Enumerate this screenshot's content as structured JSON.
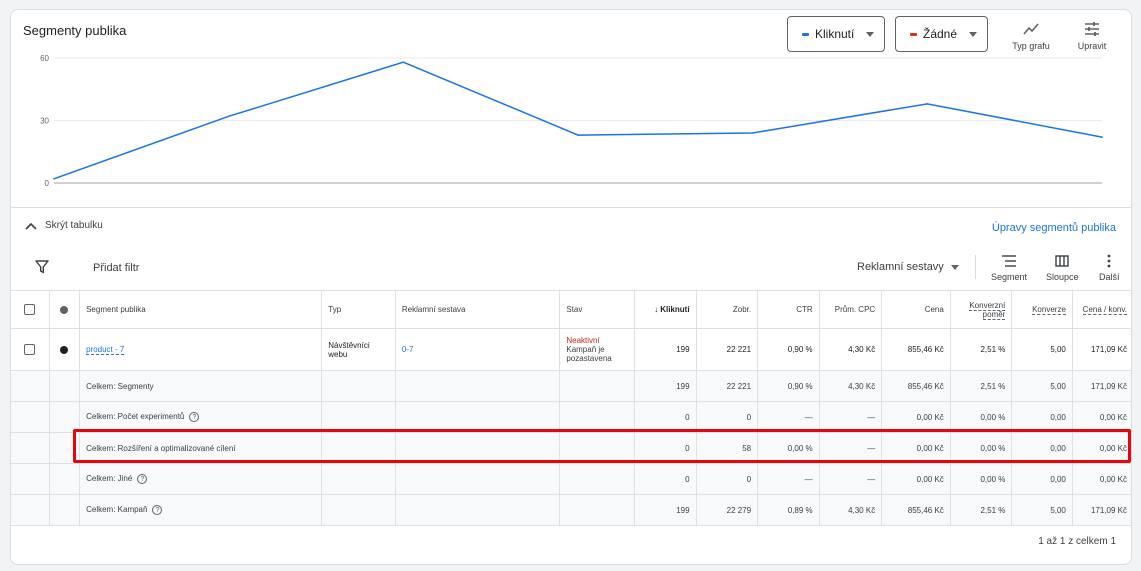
{
  "chart_panel": {
    "title": "Segmenty publika",
    "metric1": {
      "label": "Kliknutí",
      "color": "#1a73e8"
    },
    "metric2": {
      "label": "Žádné",
      "color": "#d93025"
    },
    "chart_type_label": "Typ grafu",
    "edit_label": "Upravit"
  },
  "chart_data": {
    "type": "line",
    "title": "",
    "xlabel": "",
    "ylabel": "",
    "ylim": [
      0,
      60
    ],
    "yticks": [
      "60",
      "30",
      "0"
    ],
    "series": [
      {
        "name": "Kliknutí",
        "values": [
          2,
          32,
          58,
          23,
          24,
          38,
          22
        ]
      }
    ],
    "grid": true
  },
  "table_controls": {
    "hide_table": "Skrýt tabulku",
    "segments_edit": "Úpravy segmentů publika",
    "add_filter": "Přidat filtr",
    "level": "Reklamní sestavy",
    "segment": "Segment",
    "columns": "Sloupce",
    "more": "Další"
  },
  "table": {
    "headers": {
      "segment": "Segment publika",
      "typ": "Typ",
      "sestava": "Reklamní sestava",
      "stav": "Stav",
      "kliknuti": "Kliknutí",
      "zobr": "Zobr.",
      "ctr": "CTR",
      "cpc": "Prům. CPC",
      "cena": "Cena",
      "konv_pomer": "Konverzní poměr",
      "konverze": "Konverze",
      "cena_konv": "Cena / konv."
    },
    "row": {
      "segment": "product - 7",
      "typ": "Návštěvníci webu",
      "sestava": "0-7",
      "stav_status": "Neaktivní",
      "stav_note": "Kampaň je pozastavena",
      "kliknuti": "199",
      "zobr": "22 221",
      "ctr": "0,90 %",
      "cpc": "4,30 Kč",
      "cena": "855,46 Kč",
      "konv_pomer": "2,51 %",
      "konverze": "5,00",
      "cena_konv": "171,09 Kč"
    },
    "totals": [
      {
        "label": "Celkem: Segmenty",
        "help": false,
        "kliknuti": "199",
        "zobr": "22 221",
        "ctr": "0,90 %",
        "cpc": "4,30 Kč",
        "cena": "855,46 Kč",
        "konv_pomer": "2,51 %",
        "konverze": "5,00",
        "cena_konv": "171,09 Kč"
      },
      {
        "label": "Celkem: Počet experimentů",
        "help": true,
        "kliknuti": "0",
        "zobr": "0",
        "ctr": "—",
        "cpc": "—",
        "cena": "0,00 Kč",
        "konv_pomer": "0,00 %",
        "konverze": "0,00",
        "cena_konv": "0,00 Kč"
      },
      {
        "label": "Celkem: Rozšíření a optimalizované cílení",
        "help": false,
        "kliknuti": "0",
        "zobr": "58",
        "ctr": "0,00 %",
        "cpc": "—",
        "cena": "0,00 Kč",
        "konv_pomer": "0,00 %",
        "konverze": "0,00",
        "cena_konv": "0,00 Kč"
      },
      {
        "label": "Celkem: Jiné",
        "help": true,
        "kliknuti": "0",
        "zobr": "0",
        "ctr": "—",
        "cpc": "—",
        "cena": "0,00 Kč",
        "konv_pomer": "0,00 %",
        "konverze": "0,00",
        "cena_konv": "0,00 Kč"
      },
      {
        "label": "Celkem: Kampaň",
        "help": true,
        "kliknuti": "199",
        "zobr": "22 279",
        "ctr": "0,89 %",
        "cpc": "4,30 Kč",
        "cena": "855,46 Kč",
        "konv_pomer": "2,51 %",
        "konverze": "5,00",
        "cena_konv": "171,09 Kč"
      }
    ]
  },
  "pagination": "1 až 1 z celkem 1"
}
